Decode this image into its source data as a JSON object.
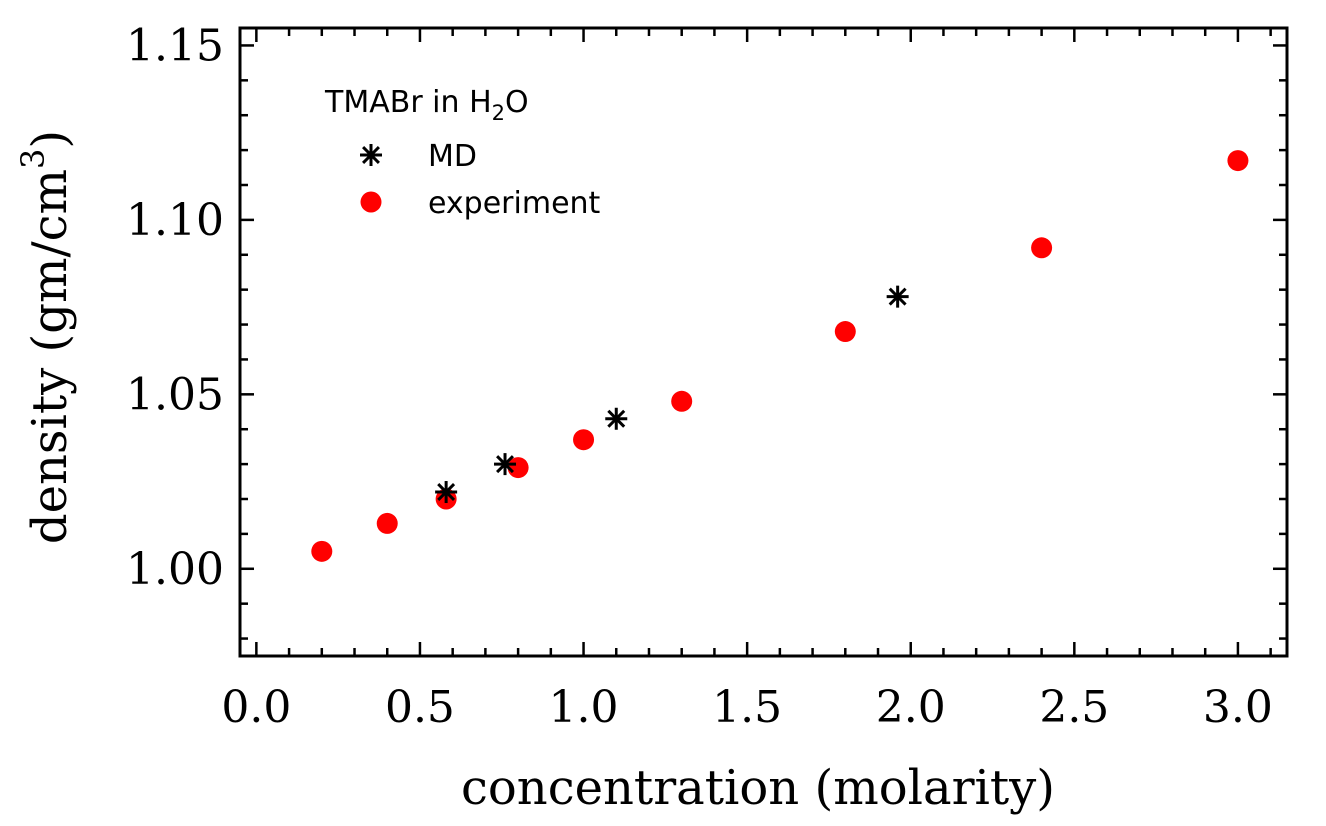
{
  "colors": {
    "md": "#000000",
    "experiment": "#ff0000",
    "axes": "#000000"
  },
  "chart_data": {
    "type": "scatter",
    "title": "",
    "xlabel": "concentration (molarity)",
    "ylabel": {
      "main": "density (gm/cm",
      "sup": "3",
      "close": ")"
    },
    "xlim": [
      -0.05,
      3.15
    ],
    "ylim": [
      0.975,
      1.155
    ],
    "x_ticks": [
      "0.0",
      "0.5",
      "1.0",
      "1.5",
      "2.0",
      "2.5",
      "3.0"
    ],
    "x_tick_values": [
      0.0,
      0.5,
      1.0,
      1.5,
      2.0,
      2.5,
      3.0
    ],
    "y_ticks": [
      "1.00",
      "1.05",
      "1.10",
      "1.15"
    ],
    "y_tick_values": [
      1.0,
      1.05,
      1.1,
      1.15
    ],
    "legend": {
      "title_main": "TMABr in H",
      "title_sub": "2",
      "title_end": "O",
      "placement": "top-left"
    },
    "series": [
      {
        "name": "MD",
        "marker": "asterisk",
        "x": [
          0.58,
          0.76,
          1.1,
          1.96
        ],
        "y": [
          1.022,
          1.03,
          1.043,
          1.078
        ]
      },
      {
        "name": "experiment",
        "marker": "circle",
        "x": [
          0.2,
          0.4,
          0.58,
          0.8,
          1.0,
          1.3,
          1.8,
          2.4,
          3.0
        ],
        "y": [
          1.005,
          1.013,
          1.02,
          1.029,
          1.037,
          1.048,
          1.068,
          1.092,
          1.117
        ]
      }
    ]
  }
}
